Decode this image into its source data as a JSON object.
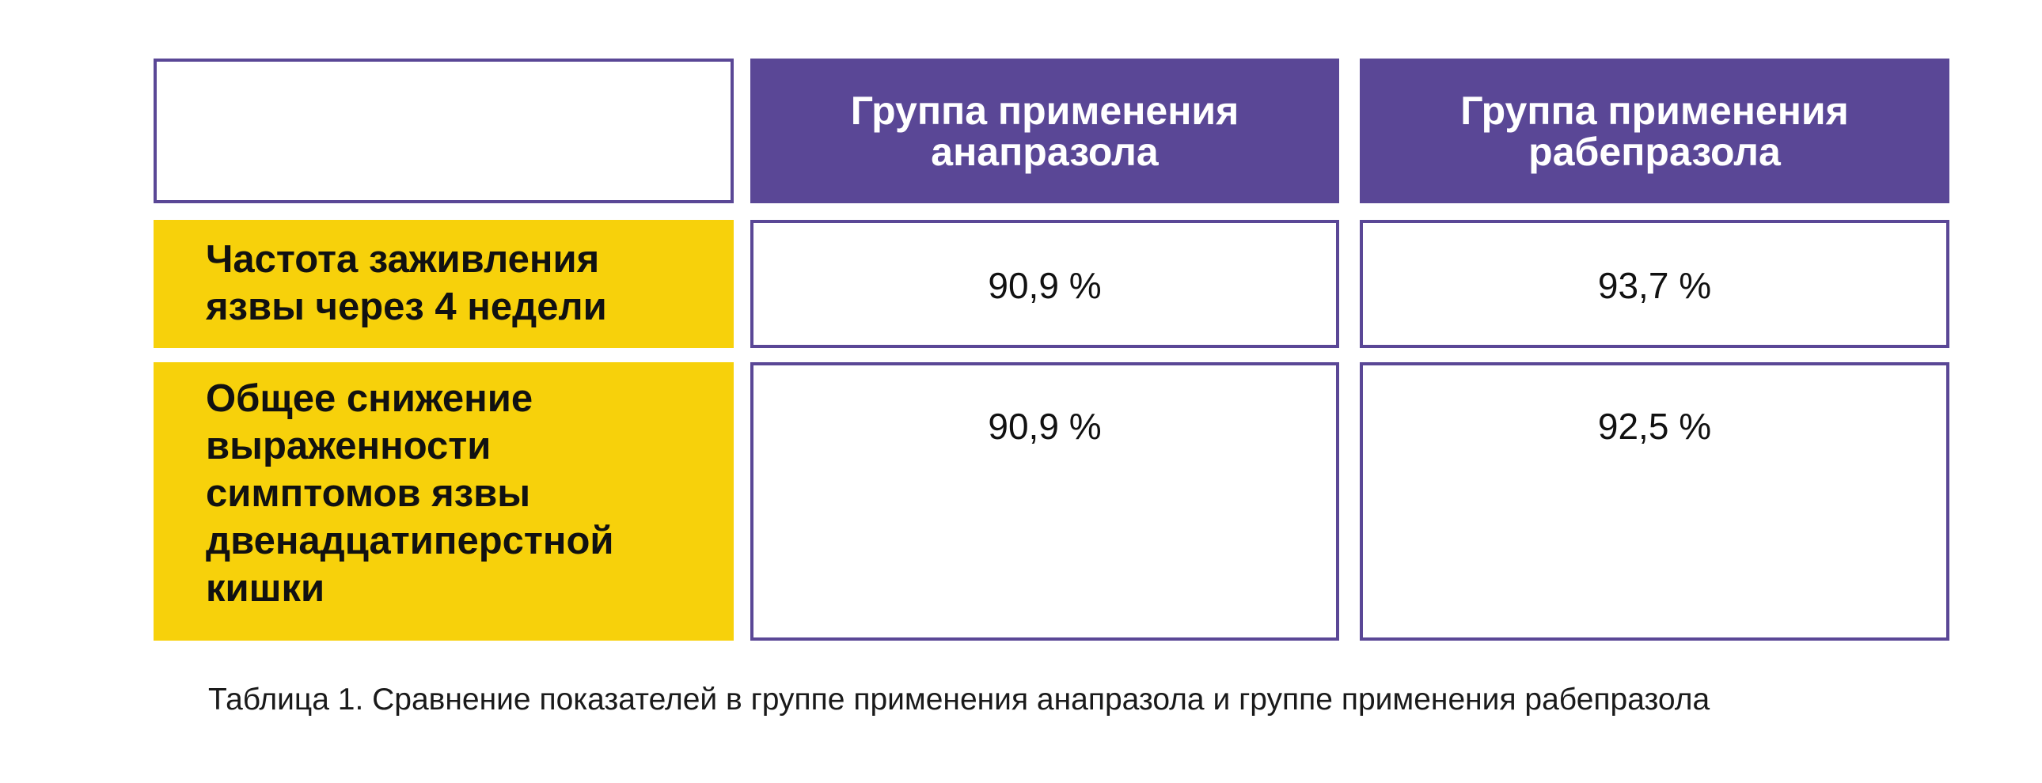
{
  "table": {
    "columns": [
      {
        "id": "anaprazole",
        "lines": [
          "Группа применения",
          "анапразола"
        ]
      },
      {
        "id": "rabeprazole",
        "lines": [
          "Группа применения",
          "рабепразола"
        ]
      }
    ],
    "rows": [
      {
        "label_lines": [
          "Частота заживления",
          "язвы через 4 недели"
        ],
        "values": [
          "90,9 %",
          "93,7 %"
        ]
      },
      {
        "label_lines": [
          "Общее снижение",
          "выраженности",
          "симптомов язвы",
          "двенадцатиперстной",
          "кишки"
        ],
        "values": [
          "90,9 %",
          "92,5 %"
        ]
      }
    ]
  },
  "caption": "Таблица 1. Сравнение показателей в группе применения анапразола и группе применения рабепразола",
  "colors": {
    "header_purple": "#5a4796",
    "label_yellow": "#f7d10b"
  }
}
